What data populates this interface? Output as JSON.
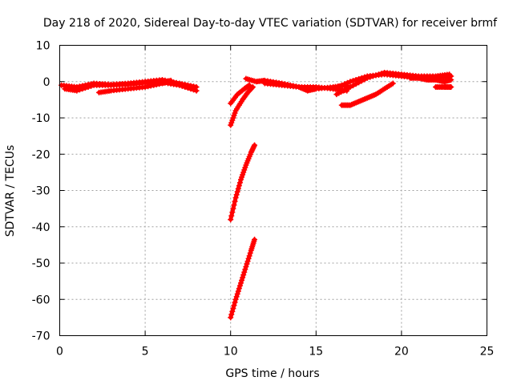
{
  "chart_data": {
    "type": "scatter",
    "title": "Day 218 of 2020, Sidereal Day-to-day VTEC variation (SDTVAR) for receiver brmf",
    "xlabel": "GPS time / hours",
    "ylabel": "SDTVAR / TECUs",
    "xlim": [
      0,
      25
    ],
    "ylim": [
      -70,
      10
    ],
    "xticks": [
      0,
      5,
      10,
      15,
      20,
      25
    ],
    "yticks": [
      -70,
      -60,
      -50,
      -40,
      -30,
      -20,
      -10,
      0,
      10
    ],
    "grid": true,
    "color": "#ff0000",
    "series": [
      {
        "name": "arc-early-1",
        "x": [
          0.1,
          1.0,
          2.0,
          3.0,
          4.0,
          5.0,
          6.0,
          7.0,
          8.0
        ],
        "y": [
          -1.0,
          -1.5,
          -0.5,
          -0.8,
          -0.5,
          0.0,
          0.5,
          -0.5,
          -1.5
        ]
      },
      {
        "name": "arc-early-2",
        "x": [
          0.3,
          1.0,
          2.0,
          3.0,
          4.0,
          5.0,
          6.0,
          7.0,
          8.0
        ],
        "y": [
          -2.0,
          -2.5,
          -1.0,
          -1.0,
          -0.8,
          -0.3,
          -0.2,
          -1.0,
          -2.5
        ]
      },
      {
        "name": "arc-early-3",
        "x": [
          2.3,
          3.0,
          4.0,
          5.0,
          6.0,
          6.5
        ],
        "y": [
          -3.0,
          -2.5,
          -2.0,
          -1.5,
          -0.5,
          0.3
        ]
      },
      {
        "name": "arc-drop-1",
        "x": [
          10.0,
          10.3,
          10.7,
          11.0,
          11.3
        ],
        "y": [
          -12.0,
          -8.0,
          -5.0,
          -3.0,
          -1.5
        ]
      },
      {
        "name": "arc-drop-2",
        "x": [
          10.0,
          10.4,
          10.8,
          11.1
        ],
        "y": [
          -6.0,
          -3.5,
          -2.0,
          -1.0
        ]
      },
      {
        "name": "arc-drop-3",
        "x": [
          10.0,
          10.3,
          10.6,
          10.9,
          11.2,
          11.4
        ],
        "y": [
          -38.0,
          -32.0,
          -27.0,
          -23.0,
          -19.5,
          -17.5
        ]
      },
      {
        "name": "arc-drop-4",
        "x": [
          10.0,
          10.3,
          10.6,
          10.9,
          11.2,
          11.4
        ],
        "y": [
          -65.0,
          -60.0,
          -55.5,
          -51.0,
          -46.5,
          -43.5
        ]
      },
      {
        "name": "arc-mid-1",
        "x": [
          10.9,
          11.5,
          12.0,
          13.0,
          14.0,
          14.5,
          15.0,
          16.0,
          16.8
        ],
        "y": [
          0.8,
          0.0,
          0.3,
          -0.5,
          -1.5,
          -2.5,
          -2.0,
          -1.5,
          -1.0
        ]
      },
      {
        "name": "arc-mid-2",
        "x": [
          12.0,
          13.0,
          14.0,
          15.0,
          16.0,
          16.8
        ],
        "y": [
          -0.5,
          -1.0,
          -1.5,
          -1.5,
          -2.0,
          -2.5
        ]
      },
      {
        "name": "arc-late-1",
        "x": [
          16.2,
          17.0,
          18.0,
          19.0,
          20.0,
          21.0,
          22.0,
          22.8
        ],
        "y": [
          -3.5,
          -1.5,
          1.0,
          2.5,
          2.0,
          1.5,
          1.5,
          2.0
        ]
      },
      {
        "name": "arc-late-2",
        "x": [
          16.0,
          17.0,
          18.0,
          19.0,
          20.0,
          21.0,
          22.0,
          22.9
        ],
        "y": [
          -2.0,
          0.0,
          1.5,
          2.0,
          1.5,
          1.0,
          1.0,
          1.5
        ]
      },
      {
        "name": "arc-late-3",
        "x": [
          16.5,
          17.0,
          17.5,
          18.0,
          18.5,
          19.0,
          19.5
        ],
        "y": [
          -6.5,
          -6.5,
          -5.5,
          -4.5,
          -3.5,
          -2.0,
          -0.5
        ]
      },
      {
        "name": "arc-late-4",
        "x": [
          20.5,
          21.0,
          21.5,
          22.0,
          22.5,
          22.9
        ],
        "y": [
          1.0,
          1.0,
          0.5,
          0.5,
          0.0,
          0.5
        ]
      },
      {
        "name": "arc-late-5",
        "x": [
          22.0,
          22.5,
          22.9
        ],
        "y": [
          -1.5,
          -1.5,
          -1.5
        ]
      }
    ]
  }
}
